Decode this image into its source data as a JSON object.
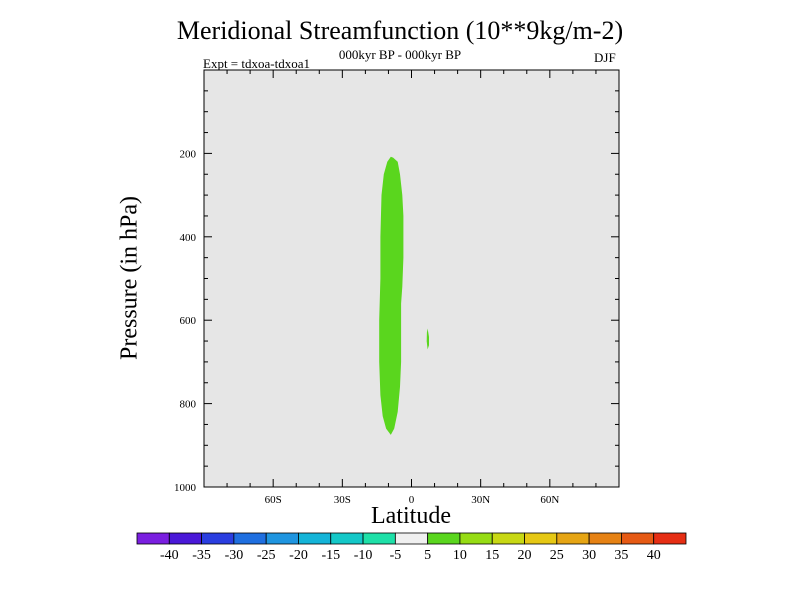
{
  "chart_data": {
    "type": "heatmap",
    "title": "Meridional Streamfunction (10**9kg/m-2)",
    "subtitle": "000kyr BP - 000kyr BP",
    "experiment": "Expt = tdxoa-tdxoa1",
    "season": "DJF",
    "xlabel": "Latitude",
    "ylabel": "Pressure (in hPa)",
    "x_ticks": [
      {
        "value": -60,
        "label": "60S"
      },
      {
        "value": -30,
        "label": "30S"
      },
      {
        "value": 0,
        "label": "0"
      },
      {
        "value": 30,
        "label": "30N"
      },
      {
        "value": 60,
        "label": "60N"
      }
    ],
    "y_ticks": [
      {
        "value": 200,
        "label": "200"
      },
      {
        "value": 400,
        "label": "400"
      },
      {
        "value": 600,
        "label": "600"
      },
      {
        "value": 800,
        "label": "800"
      },
      {
        "value": 1000,
        "label": "1000"
      }
    ],
    "xlim": [
      -90,
      90
    ],
    "ylim": [
      1000,
      0
    ],
    "background_color": "#e6e6e6",
    "contour_regions": [
      {
        "band": "5 to 10",
        "color": "#5ad61e",
        "outline": [
          [
            -8,
            210
          ],
          [
            -6,
            220
          ],
          [
            -5,
            250
          ],
          [
            -4,
            300
          ],
          [
            -3.5,
            350
          ],
          [
            -3.5,
            450
          ],
          [
            -4,
            520
          ],
          [
            -4.5,
            560
          ],
          [
            -4.5,
            620
          ],
          [
            -4.5,
            700
          ],
          [
            -5,
            760
          ],
          [
            -6,
            820
          ],
          [
            -7.5,
            860
          ],
          [
            -9,
            875
          ],
          [
            -11,
            860
          ],
          [
            -12.5,
            830
          ],
          [
            -13.5,
            780
          ],
          [
            -14,
            700
          ],
          [
            -14,
            600
          ],
          [
            -13.5,
            500
          ],
          [
            -13.5,
            400
          ],
          [
            -13,
            300
          ],
          [
            -12,
            250
          ],
          [
            -10.5,
            220
          ],
          [
            -9,
            208
          ]
        ]
      },
      {
        "band": "5 to 10",
        "color": "#5ad61e",
        "outline": [
          [
            7,
            620
          ],
          [
            7.6,
            640
          ],
          [
            7.6,
            660
          ],
          [
            7,
            670
          ],
          [
            6.6,
            650
          ],
          [
            6.7,
            630
          ]
        ]
      }
    ],
    "colorbar": {
      "labels": [
        "-40",
        "-35",
        "-30",
        "-25",
        "-20",
        "-15",
        "-10",
        "-5",
        "5",
        "10",
        "15",
        "20",
        "25",
        "30",
        "35",
        "40"
      ],
      "colors": [
        "#7a1fe0",
        "#4a18d8",
        "#2a3ee0",
        "#1f6fe0",
        "#1f95e0",
        "#14b4d8",
        "#14c8c8",
        "#1ee0a8",
        "#f0f0f0",
        "#5ad61e",
        "#96dc14",
        "#c8d814",
        "#e6c814",
        "#e6a514",
        "#e68214",
        "#e65a14",
        "#e62e14"
      ]
    }
  }
}
